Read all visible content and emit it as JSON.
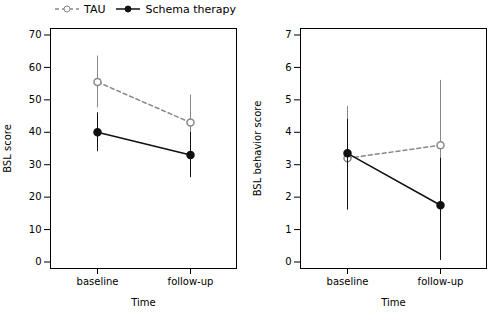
{
  "chart_data": [
    {
      "type": "line",
      "xlabel": "Time",
      "ylabel": "BSL score",
      "categories": [
        "baseline",
        "follow-up"
      ],
      "ylim": [
        -2,
        72
      ],
      "yticks": [
        0,
        10,
        20,
        30,
        40,
        50,
        60,
        70
      ],
      "legend": "upper right",
      "series": [
        {
          "name": "TAU",
          "color": "#888888",
          "line_style": "dashed",
          "marker": "open_circle",
          "values": [
            55.5,
            43.0
          ],
          "ci_low": [
            47.5,
            33.0
          ],
          "ci_high": [
            63.5,
            51.5
          ]
        },
        {
          "name": "Schema therapy",
          "color": "#111111",
          "line_style": "solid",
          "marker": "circle",
          "values": [
            40.0,
            33.0
          ],
          "ci_low": [
            34.0,
            26.0
          ],
          "ci_high": [
            46.0,
            40.0
          ]
        }
      ]
    },
    {
      "type": "line",
      "xlabel": "Time",
      "ylabel": "BSL behavior score",
      "categories": [
        "baseline",
        "follow-up"
      ],
      "ylim": [
        -0.2,
        7.2
      ],
      "yticks": [
        0,
        1,
        2,
        3,
        4,
        5,
        6,
        7
      ],
      "legend": false,
      "series": [
        {
          "name": "TAU",
          "color": "#888888",
          "line_style": "dashed",
          "marker": "open_circle",
          "values": [
            3.2,
            3.6
          ],
          "ci_low": [
            2.2,
            2.9
          ],
          "ci_high": [
            4.8,
            5.6
          ]
        },
        {
          "name": "Schema therapy",
          "color": "#111111",
          "line_style": "solid",
          "marker": "circle",
          "values": [
            3.35,
            1.75
          ],
          "ci_low": [
            1.6,
            0.05
          ],
          "ci_high": [
            4.4,
            3.2
          ]
        }
      ]
    }
  ]
}
